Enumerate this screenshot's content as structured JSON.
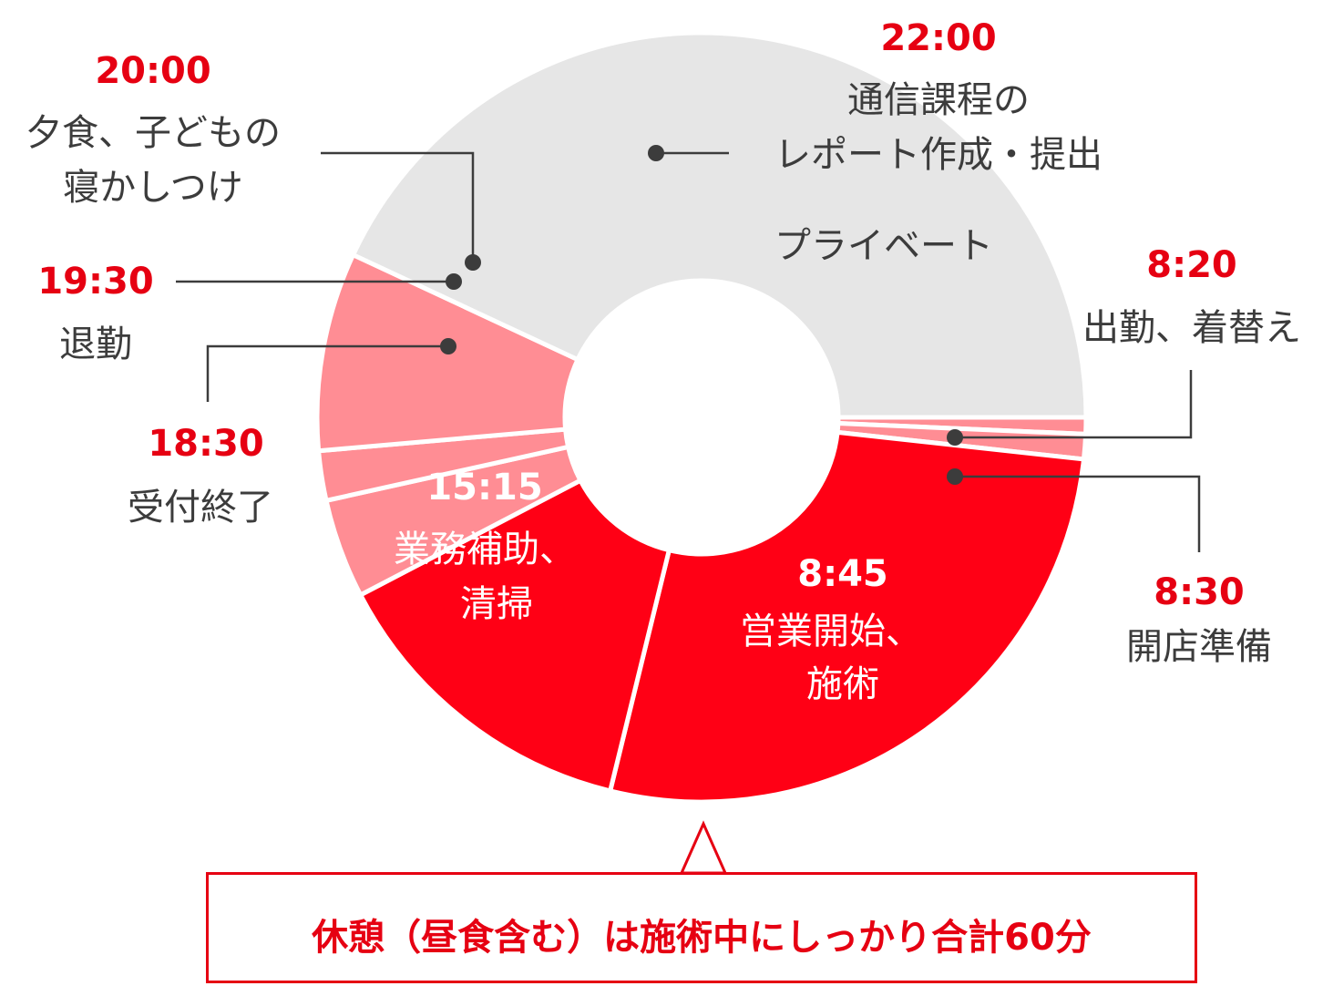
{
  "colors": {
    "work": "#ff0015",
    "light": "#ff8d94",
    "private": "#e6e6e6",
    "accent": "#e60012",
    "text": "#3c3c3c",
    "leader": "#3c3c3c"
  },
  "chart_data": {
    "type": "pie",
    "variant": "donut",
    "start_time": "8:20",
    "segments": [
      {
        "time": "8:20",
        "label_lines": [
          "出勤、着替え"
        ],
        "category": "light",
        "start": "8:20",
        "end": "8:30"
      },
      {
        "time": "8:30",
        "label_lines": [
          "開店準備"
        ],
        "category": "light",
        "start": "8:30",
        "end": "8:45"
      },
      {
        "time": "8:45",
        "label_lines": [
          "営業開始、",
          "施術"
        ],
        "category": "work",
        "start": "8:45",
        "end": "15:15"
      },
      {
        "time": "15:15",
        "label_lines": [
          "業務補助、",
          "清掃"
        ],
        "category": "work",
        "start": "15:15",
        "end": "18:30"
      },
      {
        "time": "18:30",
        "label_lines": [
          "受付終了"
        ],
        "category": "light",
        "start": "18:30",
        "end": "19:30"
      },
      {
        "time": "19:30",
        "label_lines": [
          "退勤"
        ],
        "category": "light",
        "start": "19:30",
        "end": "20:00"
      },
      {
        "time": "20:00",
        "label_lines": [
          "夕食、子どもの",
          "寝かしつけ"
        ],
        "category": "light",
        "start": "20:00",
        "end": "22:00"
      },
      {
        "time": "22:00",
        "label_lines": [
          "通信課程の",
          "レポート作成・提出"
        ],
        "category": "private",
        "start": "22:00",
        "end": "8:20"
      }
    ],
    "private_label": "プライベート"
  },
  "callout": {
    "text": "休憩（昼食含む）は施術中にしっかり合計60分"
  }
}
